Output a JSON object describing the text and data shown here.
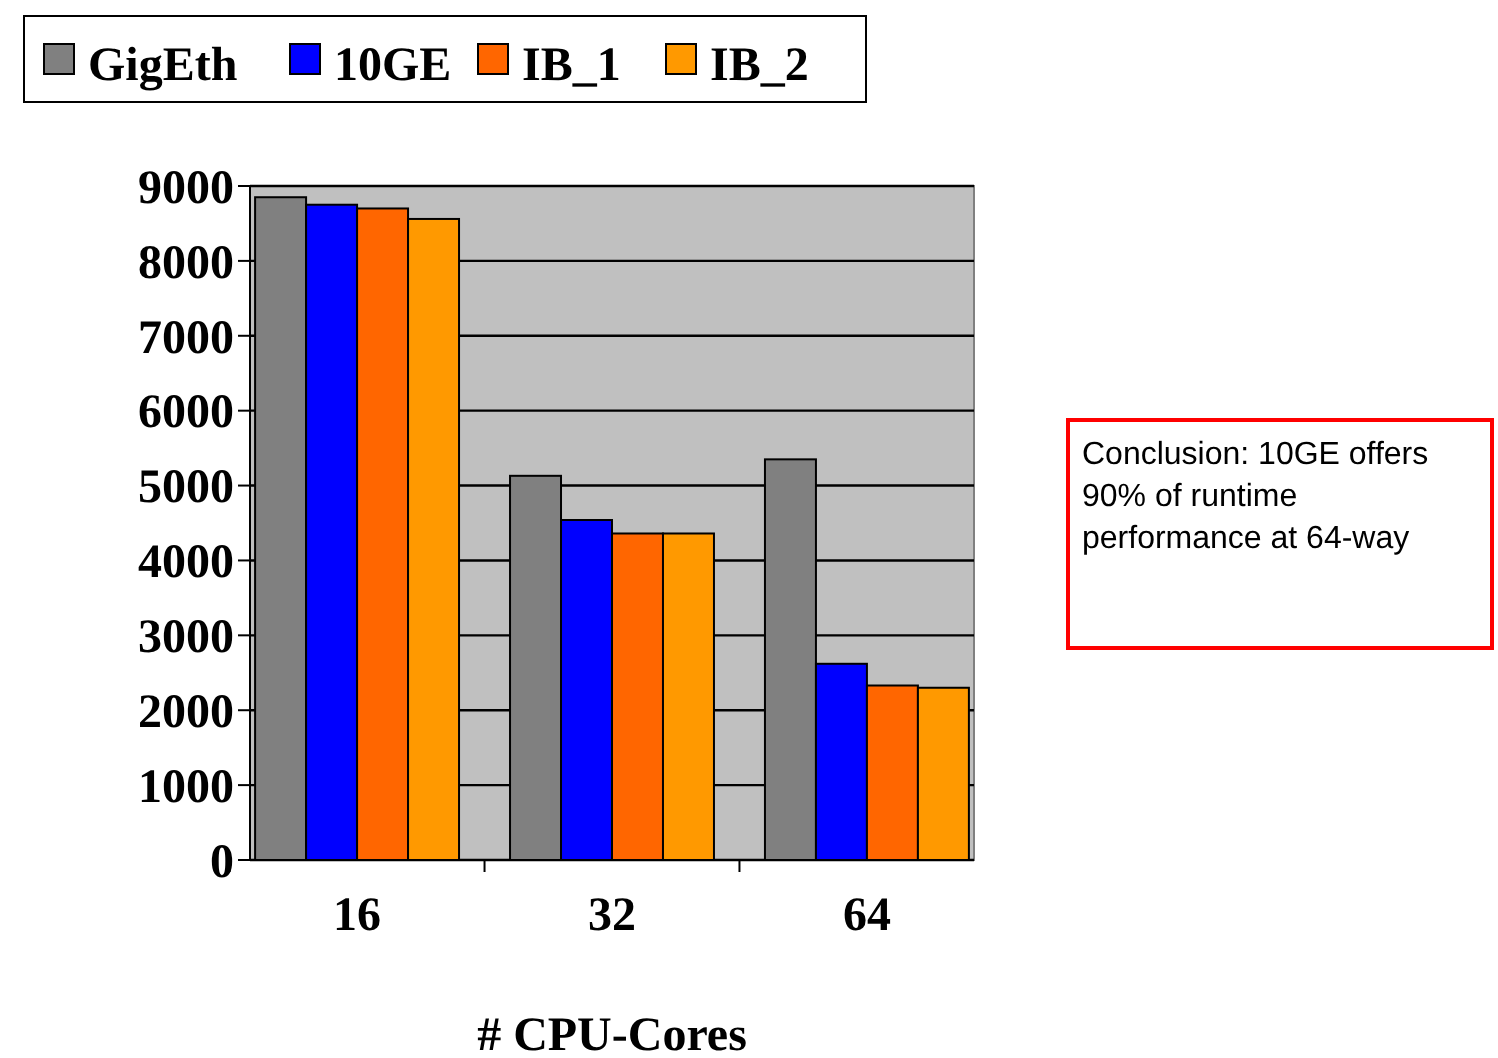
{
  "chart_data": {
    "type": "bar",
    "xlabel": "# CPU-Cores",
    "categories": [
      "16",
      "32",
      "64"
    ],
    "series": [
      {
        "name": "GigEth",
        "color": "#808080",
        "values": [
          8850,
          5130,
          5350
        ]
      },
      {
        "name": "10GE",
        "color": "#0000ff",
        "values": [
          8750,
          4540,
          2620
        ]
      },
      {
        "name": "IB_1",
        "color": "#ff6600",
        "values": [
          8700,
          4360,
          2330
        ]
      },
      {
        "name": "IB_2",
        "color": "#ff9900",
        "values": [
          8560,
          4360,
          2300
        ]
      }
    ],
    "ylim": [
      0,
      9000
    ],
    "yticks": [
      0,
      1000,
      2000,
      3000,
      4000,
      5000,
      6000,
      7000,
      8000,
      9000
    ],
    "grid": "y",
    "legend": "top",
    "annotations": [
      "Conclusion: 10GE offers 90% of runtime performance at 64-way"
    ]
  }
}
